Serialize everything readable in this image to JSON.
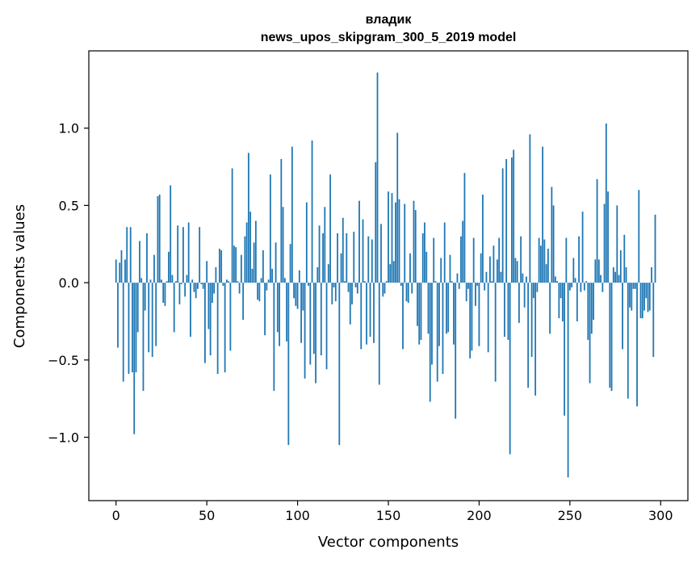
{
  "chart_data": {
    "type": "bar",
    "title": "владик",
    "subtitle": "news_upos_skipgram_300_5_2019 model",
    "xlabel": "Vector components",
    "ylabel": "Components values",
    "xlim": [
      -15,
      315
    ],
    "ylim": [
      -1.41,
      1.5
    ],
    "xticks": [
      0,
      50,
      100,
      150,
      200,
      250,
      300
    ],
    "yticks": [
      -1.0,
      -0.5,
      0.0,
      0.5,
      1.0
    ],
    "ytick_labels": [
      "−1.0",
      "−0.5",
      "0.0",
      "0.5",
      "1.0"
    ],
    "grid": false,
    "color": "#1f77b4",
    "x_start": 0,
    "values": [
      0.15,
      -0.42,
      0.13,
      0.21,
      -0.64,
      0.15,
      0.36,
      -0.59,
      0.36,
      -0.58,
      -0.98,
      -0.58,
      -0.32,
      0.27,
      0.03,
      -0.7,
      -0.18,
      0.32,
      -0.45,
      0.02,
      -0.48,
      0.18,
      -0.41,
      0.56,
      0.57,
      0.02,
      -0.13,
      -0.15,
      0.01,
      0.2,
      0.63,
      0.05,
      -0.32,
      0.01,
      0.37,
      -0.14,
      -0.01,
      0.36,
      -0.09,
      0.05,
      0.39,
      -0.35,
      0.02,
      -0.06,
      -0.1,
      -0.04,
      0.36,
      -0.01,
      -0.04,
      -0.52,
      0.14,
      -0.3,
      -0.47,
      -0.13,
      -0.07,
      0.1,
      -0.59,
      0.22,
      0.21,
      -0.02,
      -0.58,
      0.02,
      0.01,
      -0.44,
      0.74,
      0.24,
      0.23,
      0.01,
      -0.07,
      0.18,
      -0.24,
      0.3,
      0.39,
      0.84,
      0.46,
      0.09,
      0.26,
      0.4,
      -0.11,
      -0.12,
      0.03,
      0.21,
      -0.34,
      -0.05,
      0.02,
      0.7,
      0.09,
      -0.7,
      0.26,
      -0.32,
      -0.41,
      0.8,
      0.49,
      0.03,
      -0.38,
      -1.05,
      0.25,
      0.88,
      -0.1,
      -0.15,
      -0.17,
      0.08,
      -0.39,
      -0.18,
      -0.62,
      0.52,
      -0.02,
      -0.53,
      0.92,
      -0.46,
      -0.65,
      0.1,
      0.37,
      -0.47,
      0.32,
      0.49,
      -0.56,
      0.12,
      0.7,
      -0.14,
      -0.03,
      -0.12,
      0.32,
      -1.05,
      0.19,
      0.42,
      0.01,
      0.32,
      -0.06,
      -0.27,
      -0.14,
      0.33,
      -0.03,
      -0.07,
      0.53,
      -0.43,
      0.41,
      0.01,
      -0.4,
      0.3,
      -0.35,
      0.28,
      -0.39,
      0.78,
      1.36,
      -0.66,
      0.38,
      -0.09,
      -0.07,
      0.01,
      0.59,
      0.12,
      0.58,
      0.14,
      0.52,
      0.97,
      0.54,
      -0.02,
      -0.43,
      0.51,
      -0.12,
      -0.13,
      0.19,
      -0.07,
      0.53,
      0.47,
      -0.28,
      -0.4,
      -0.37,
      0.32,
      0.39,
      0.2,
      -0.33,
      -0.77,
      -0.53,
      0.29,
      0.01,
      -0.64,
      -0.41,
      0.16,
      -0.59,
      0.39,
      -0.33,
      -0.32,
      0.18,
      0.01,
      -0.4,
      -0.88,
      0.06,
      -0.04,
      0.3,
      0.4,
      0.71,
      -0.12,
      -0.04,
      -0.49,
      -0.44,
      0.29,
      -0.15,
      -0.02,
      -0.41,
      0.19,
      0.57,
      -0.05,
      0.07,
      -0.45,
      0.17,
      0.01,
      0.24,
      -0.64,
      0.15,
      0.29,
      0.07,
      0.74,
      -0.35,
      0.8,
      -0.37,
      -1.11,
      0.81,
      0.86,
      0.16,
      0.14,
      -0.26,
      0.3,
      0.06,
      -0.16,
      0.04,
      -0.68,
      0.96,
      -0.48,
      -0.1,
      -0.73,
      -0.06,
      0.29,
      0.24,
      0.88,
      0.28,
      0.12,
      0.22,
      -0.33,
      0.62,
      0.5,
      0.04,
      0.01,
      -0.23,
      -0.1,
      -0.25,
      -0.86,
      0.29,
      -1.26,
      -0.05,
      -0.03,
      0.16,
      0.03,
      -0.25,
      0.3,
      -0.06,
      0.46,
      -0.05,
      0.01,
      -0.37,
      -0.65,
      -0.33,
      -0.24,
      0.15,
      0.67,
      0.15,
      0.05,
      -0.06,
      0.51,
      1.03,
      0.59,
      -0.68,
      -0.7,
      0.1,
      0.07,
      0.5,
      0.05,
      0.21,
      -0.43,
      0.31,
      0.1,
      -0.75,
      -0.16,
      -0.18,
      -0.04,
      -0.04,
      -0.8,
      0.6,
      -0.23,
      -0.23,
      -0.18,
      -0.1,
      -0.19,
      -0.18,
      0.1,
      -0.48,
      0.44
    ]
  }
}
